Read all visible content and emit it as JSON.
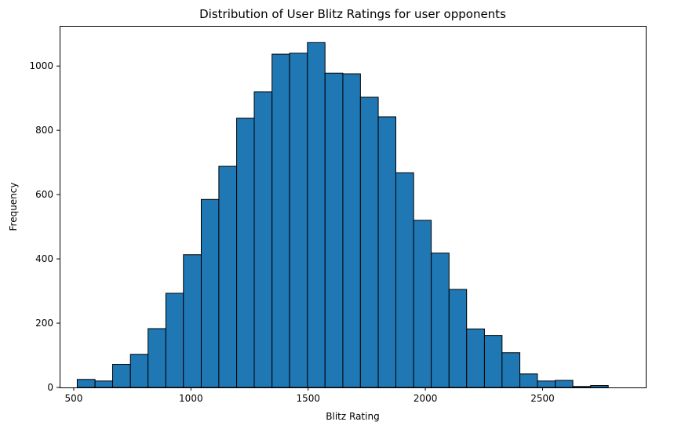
{
  "chart_data": {
    "type": "bar",
    "title": "Distribution of User Blitz Ratings for user opponents",
    "xlabel": "Blitz Rating",
    "ylabel": "Frequency",
    "xlim": [
      440,
      2940
    ],
    "ylim": [
      0,
      1125
    ],
    "x_ticks": [
      500,
      1000,
      1500,
      2000,
      2500
    ],
    "y_ticks": [
      0,
      200,
      400,
      600,
      800,
      1000
    ],
    "grid": false,
    "bar_color": "#1f77b4",
    "edge_color": "#000000",
    "bins": [
      {
        "start": 515,
        "end": 591,
        "count": 25
      },
      {
        "start": 591,
        "end": 666,
        "count": 20
      },
      {
        "start": 666,
        "end": 742,
        "count": 72
      },
      {
        "start": 742,
        "end": 817,
        "count": 103
      },
      {
        "start": 817,
        "end": 893,
        "count": 183
      },
      {
        "start": 893,
        "end": 968,
        "count": 293
      },
      {
        "start": 968,
        "end": 1044,
        "count": 413
      },
      {
        "start": 1044,
        "end": 1119,
        "count": 585
      },
      {
        "start": 1119,
        "end": 1195,
        "count": 688
      },
      {
        "start": 1195,
        "end": 1270,
        "count": 838
      },
      {
        "start": 1270,
        "end": 1346,
        "count": 920
      },
      {
        "start": 1346,
        "end": 1421,
        "count": 1037
      },
      {
        "start": 1421,
        "end": 1497,
        "count": 1040
      },
      {
        "start": 1497,
        "end": 1572,
        "count": 1073
      },
      {
        "start": 1572,
        "end": 1648,
        "count": 978
      },
      {
        "start": 1648,
        "end": 1723,
        "count": 976
      },
      {
        "start": 1723,
        "end": 1799,
        "count": 903
      },
      {
        "start": 1799,
        "end": 1874,
        "count": 842
      },
      {
        "start": 1874,
        "end": 1950,
        "count": 668
      },
      {
        "start": 1950,
        "end": 2025,
        "count": 520
      },
      {
        "start": 2025,
        "end": 2101,
        "count": 418
      },
      {
        "start": 2101,
        "end": 2176,
        "count": 305
      },
      {
        "start": 2176,
        "end": 2252,
        "count": 182
      },
      {
        "start": 2252,
        "end": 2327,
        "count": 162
      },
      {
        "start": 2327,
        "end": 2403,
        "count": 108
      },
      {
        "start": 2403,
        "end": 2478,
        "count": 42
      },
      {
        "start": 2478,
        "end": 2554,
        "count": 20
      },
      {
        "start": 2554,
        "end": 2629,
        "count": 22
      },
      {
        "start": 2629,
        "end": 2705,
        "count": 3
      },
      {
        "start": 2705,
        "end": 2780,
        "count": 6
      }
    ]
  }
}
